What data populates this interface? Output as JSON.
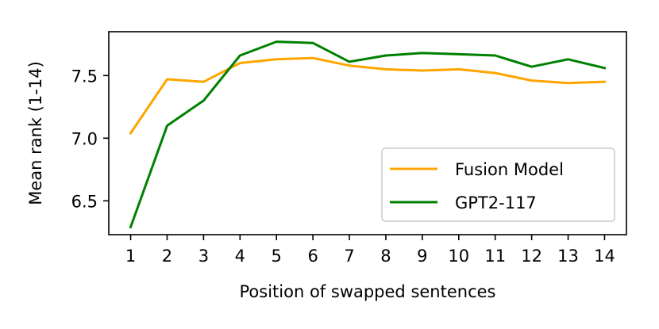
{
  "chart_data": {
    "type": "line",
    "title": "",
    "xlabel": "Position of swapped sentences",
    "ylabel": "Mean rank (1-14)",
    "x": [
      1,
      2,
      3,
      4,
      5,
      6,
      7,
      8,
      9,
      10,
      11,
      12,
      13,
      14
    ],
    "xticks": [
      "1",
      "2",
      "3",
      "4",
      "5",
      "6",
      "7",
      "8",
      "9",
      "10",
      "11",
      "12",
      "13",
      "14"
    ],
    "yticks": [
      "6.5",
      "7.0",
      "7.5"
    ],
    "ytick_values": [
      6.5,
      7.0,
      7.5
    ],
    "xlim": [
      0.4,
      14.6
    ],
    "ylim": [
      6.23,
      7.85
    ],
    "grid": false,
    "legend_position": "lower-right",
    "series": [
      {
        "name": "Fusion Model",
        "color": "#ffa500",
        "values": [
          7.04,
          7.47,
          7.45,
          7.6,
          7.63,
          7.64,
          7.58,
          7.55,
          7.54,
          7.55,
          7.52,
          7.46,
          7.44,
          7.45
        ]
      },
      {
        "name": "GPT2-117",
        "color": "#008000",
        "values": [
          6.29,
          7.1,
          7.3,
          7.66,
          7.77,
          7.76,
          7.61,
          7.66,
          7.68,
          7.67,
          7.66,
          7.57,
          7.63,
          7.56
        ]
      }
    ]
  }
}
